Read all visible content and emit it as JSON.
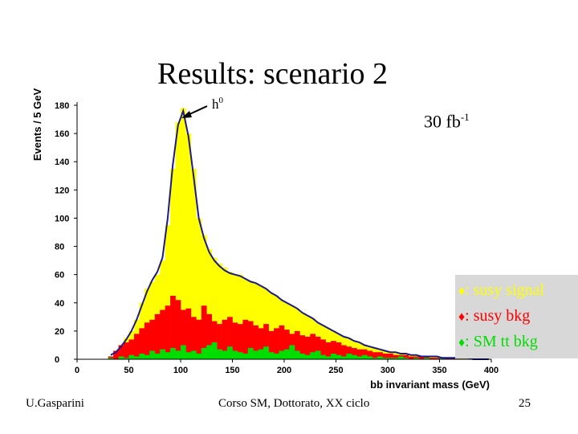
{
  "slide": {
    "title": "Results: scenario 2",
    "luminosity": "30 fb",
    "luminosity_exp": "-1",
    "footer_author": "U.Gasparini",
    "footer_course": "Corso SM, Dottorato, XX ciclo",
    "page_number": "25"
  },
  "legend": {
    "marker": "♦",
    "items": [
      {
        "label": ": susy signal",
        "color": "#ffff00"
      },
      {
        "label": ": susy bkg",
        "color": "#ff0000"
      },
      {
        "label": ": SM tt bkg",
        "color": "#00dd00"
      }
    ]
  },
  "chart_data": {
    "type": "area",
    "title": "",
    "xlabel": "bb invariant mass (GeV)",
    "ylabel": "Events / 5 GeV",
    "xlim": [
      0,
      400
    ],
    "ylim": [
      0,
      180
    ],
    "x_ticks": [
      0,
      50,
      100,
      150,
      200,
      250,
      300,
      350,
      400
    ],
    "y_ticks": [
      0,
      20,
      40,
      60,
      80,
      100,
      120,
      140,
      160,
      180
    ],
    "annotations": [
      {
        "text": "h",
        "sup": "0",
        "x": 100,
        "y": 172
      }
    ],
    "bin_width": 5,
    "x": [
      30,
      35,
      40,
      45,
      50,
      55,
      60,
      65,
      70,
      75,
      80,
      85,
      90,
      95,
      100,
      105,
      110,
      115,
      120,
      125,
      130,
      135,
      140,
      145,
      150,
      155,
      160,
      165,
      170,
      175,
      180,
      185,
      190,
      195,
      200,
      205,
      210,
      215,
      220,
      225,
      230,
      235,
      240,
      245,
      250,
      255,
      260,
      265,
      270,
      275,
      280,
      285,
      290,
      295,
      300,
      305,
      310,
      315,
      320,
      325,
      330,
      335,
      340,
      345,
      350,
      355,
      360,
      365,
      370,
      375,
      380,
      385,
      390,
      395
    ],
    "series": [
      {
        "name": "susy signal",
        "color": "#ffff00",
        "values": [
          2,
          4,
          10,
          15,
          20,
          28,
          40,
          50,
          55,
          60,
          70,
          95,
          135,
          168,
          178,
          160,
          135,
          100,
          88,
          78,
          72,
          68,
          65,
          62,
          60,
          60,
          57,
          55,
          54,
          52,
          50,
          47,
          45,
          42,
          40,
          38,
          36,
          33,
          31,
          29,
          26,
          24,
          22,
          20,
          18,
          16,
          15,
          13,
          12,
          10,
          9,
          8,
          7,
          6,
          5,
          5,
          4,
          4,
          3,
          3,
          2,
          2,
          2,
          2,
          1,
          1,
          1,
          1,
          1,
          1,
          0,
          0,
          0,
          0
        ]
      },
      {
        "name": "susy bkg",
        "color": "#ff0000",
        "values": [
          2,
          6,
          10,
          12,
          14,
          18,
          22,
          26,
          28,
          32,
          35,
          38,
          45,
          42,
          35,
          36,
          30,
          28,
          38,
          32,
          27,
          25,
          28,
          30,
          26,
          25,
          28,
          27,
          24,
          22,
          25,
          20,
          22,
          24,
          21,
          18,
          20,
          17,
          16,
          18,
          16,
          14,
          12,
          13,
          12,
          10,
          9,
          8,
          7,
          7,
          6,
          5,
          5,
          4,
          4,
          3,
          3,
          3,
          2,
          2,
          2,
          2,
          1,
          1,
          1,
          1,
          1,
          0,
          0,
          0,
          0,
          0,
          0,
          0
        ]
      },
      {
        "name": "SM tt bkg",
        "color": "#00dd00",
        "values": [
          1,
          0,
          2,
          1,
          3,
          2,
          4,
          3,
          6,
          4,
          7,
          5,
          8,
          6,
          10,
          5,
          6,
          4,
          8,
          10,
          12,
          7,
          6,
          9,
          6,
          5,
          4,
          8,
          6,
          7,
          9,
          5,
          4,
          6,
          7,
          10,
          6,
          4,
          3,
          5,
          6,
          3,
          2,
          4,
          3,
          2,
          4,
          3,
          2,
          3,
          2,
          1,
          2,
          1,
          1,
          1,
          2,
          1,
          0,
          1,
          0,
          1,
          0,
          0,
          1,
          0,
          0,
          0,
          0,
          0,
          0,
          0,
          0,
          0
        ]
      }
    ],
    "fit_curve": {
      "name": "fit",
      "color": "#1a1a8c",
      "values": [
        3,
        5,
        9,
        14,
        20,
        28,
        38,
        48,
        56,
        62,
        72,
        100,
        138,
        166,
        176,
        158,
        130,
        100,
        86,
        76,
        70,
        66,
        63,
        61,
        60,
        59,
        57,
        55,
        54,
        52,
        50,
        47,
        45,
        42,
        40,
        38,
        36,
        33,
        31,
        29,
        26,
        24,
        22,
        20,
        18,
        16,
        15,
        13,
        12,
        10,
        9,
        8,
        7,
        6,
        5,
        5,
        4,
        4,
        3,
        3,
        2,
        2,
        2,
        2,
        1,
        1,
        1,
        1,
        1,
        1,
        0,
        0,
        0,
        0
      ]
    },
    "grid": false,
    "legend_position": "right"
  }
}
